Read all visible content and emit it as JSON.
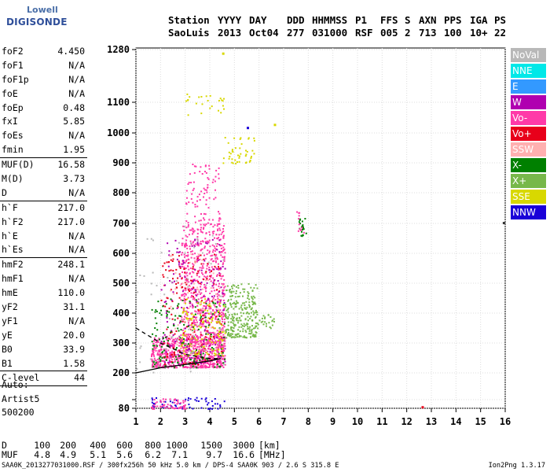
{
  "logo": {
    "line1": "Lowell",
    "line2": "DIGISONDE"
  },
  "header": {
    "labels": [
      "Station",
      "YYYY",
      "DAY",
      "DDD",
      "HHMMSS",
      "P1",
      "FFS",
      "S",
      "AXN",
      "PPS",
      "IGA",
      "PS"
    ],
    "values": [
      "SaoLuis",
      "2013",
      "Oct04",
      "277",
      "031000",
      "RSF",
      "005",
      "2",
      "713",
      "100",
      "10+",
      "22"
    ]
  },
  "params": [
    {
      "name": "foF2",
      "value": "4.450"
    },
    {
      "name": "foF1",
      "value": "N/A"
    },
    {
      "name": "foF1p",
      "value": "N/A"
    },
    {
      "name": "foE",
      "value": "N/A"
    },
    {
      "name": "foEp",
      "value": "0.48"
    },
    {
      "name": "fxI",
      "value": "5.85"
    },
    {
      "name": "foEs",
      "value": "N/A"
    },
    {
      "name": "fmin",
      "value": "1.95"
    },
    {
      "sep": true
    },
    {
      "name": "MUF(D)",
      "value": "16.58"
    },
    {
      "name": "M(D)",
      "value": "3.73"
    },
    {
      "name": "D",
      "value": "N/A"
    },
    {
      "sep": true
    },
    {
      "name": "h`F",
      "value": "217.0"
    },
    {
      "name": "h`F2",
      "value": "217.0"
    },
    {
      "name": "h`E",
      "value": "N/A"
    },
    {
      "name": "h`Es",
      "value": "N/A"
    },
    {
      "sep": true
    },
    {
      "name": "hmF2",
      "value": "248.1"
    },
    {
      "name": "hmF1",
      "value": "N/A"
    },
    {
      "name": "hmE",
      "value": "110.0"
    },
    {
      "name": "yF2",
      "value": "31.1"
    },
    {
      "name": "yF1",
      "value": "N/A"
    },
    {
      "name": "yE",
      "value": "20.0"
    },
    {
      "name": "B0",
      "value": "33.9"
    },
    {
      "name": "B1",
      "value": "1.58"
    },
    {
      "sep": true
    },
    {
      "name": "C-level",
      "value": "44"
    },
    {
      "sep": true
    }
  ],
  "auto": {
    "line1": "Auto:",
    "line2": "Artist5",
    "line3": "500200"
  },
  "legend": [
    {
      "label": "NoVal",
      "color": "#b8b8b8"
    },
    {
      "label": "NNE",
      "color": "#00e8e8"
    },
    {
      "label": "E",
      "color": "#3399ff"
    },
    {
      "label": "W",
      "color": "#b000b0"
    },
    {
      "label": "Vo-",
      "color": "#ff3aa8"
    },
    {
      "label": "Vo+",
      "color": "#e8001a"
    },
    {
      "label": "SSW",
      "color": "#ffb0b0"
    },
    {
      "label": "X-",
      "color": "#008000"
    },
    {
      "label": "X+",
      "color": "#77b84a"
    },
    {
      "label": "SSE",
      "color": "#d8d800"
    },
    {
      "label": "NNW",
      "color": "#1a00d8"
    }
  ],
  "bottom": {
    "d_label": "D",
    "d_values": [
      "100",
      "200",
      "400",
      "600",
      "800",
      "1000",
      "1500",
      "3000"
    ],
    "d_unit": "[km]",
    "muf_label": "MUF",
    "muf_values": [
      "4.8",
      "4.9",
      "5.1",
      "5.6",
      "6.2",
      "7.1",
      "9.7",
      "16.6"
    ],
    "muf_unit": "[MHz]"
  },
  "footer": {
    "left": "SAA0K_2013277031000.RSF / 300fx256h 50 kHz 5.0 km / DPS-4 SAA0K 903 / 2.6 S 315.8 E",
    "right": "Ion2Png 1.3.17"
  },
  "chart_data": {
    "type": "scatter",
    "x_ticks": [
      1,
      2,
      3,
      4,
      5,
      6,
      7,
      8,
      9,
      10,
      11,
      12,
      13,
      14,
      15,
      16
    ],
    "y_ticks": [
      80,
      100,
      200,
      300,
      400,
      500,
      600,
      700,
      800,
      900,
      1000,
      1100,
      1280
    ],
    "y_tick_labels": [
      "80",
      "",
      "200",
      "300",
      "400",
      "500",
      "600",
      "700",
      "800",
      "900",
      "1000",
      "1100",
      "1280"
    ],
    "xlim": [
      1,
      16
    ],
    "ylim": [
      80,
      1280
    ],
    "grid": true,
    "legend_position": "right",
    "clusters": [
      {
        "name": "Vo-",
        "color": "#ff3aa8",
        "x": [
          1.6,
          4.6
        ],
        "y": [
          220,
          320
        ],
        "n": 700
      },
      {
        "name": "Vo-",
        "color": "#ff3aa8",
        "x": [
          2.8,
          4.6
        ],
        "y": [
          300,
          700
        ],
        "n": 650
      },
      {
        "name": "Vo-",
        "color": "#ff3aa8",
        "x": [
          3.0,
          4.4
        ],
        "y": [
          700,
          900
        ],
        "n": 90
      },
      {
        "name": "Vo+",
        "color": "#e8001a",
        "x": [
          2.0,
          4.5
        ],
        "y": [
          230,
          600
        ],
        "n": 200
      },
      {
        "name": "W",
        "color": "#b000b0",
        "x": [
          2.0,
          4.6
        ],
        "y": [
          230,
          650
        ],
        "n": 180
      },
      {
        "name": "X-",
        "color": "#008000",
        "x": [
          1.6,
          4.6
        ],
        "y": [
          220,
          450
        ],
        "n": 160
      },
      {
        "name": "X+",
        "color": "#77b84a",
        "x": [
          4.6,
          5.9
        ],
        "y": [
          320,
          500
        ],
        "n": 260
      },
      {
        "name": "X+",
        "color": "#77b84a",
        "x": [
          5.9,
          6.6
        ],
        "y": [
          350,
          400
        ],
        "n": 25
      },
      {
        "name": "SSE",
        "color": "#d8d800",
        "x": [
          2.8,
          4.6
        ],
        "y": [
          260,
          450
        ],
        "n": 120
      },
      {
        "name": "SSE",
        "color": "#d8d800",
        "x": [
          4.5,
          5.8
        ],
        "y": [
          900,
          990
        ],
        "n": 45
      },
      {
        "name": "SSE",
        "color": "#d8d800",
        "x": [
          3.0,
          4.6
        ],
        "y": [
          1060,
          1130
        ],
        "n": 25
      },
      {
        "name": "SSW",
        "color": "#ffb0b0",
        "x": [
          2.3,
          4.6
        ],
        "y": [
          280,
          600
        ],
        "n": 80
      },
      {
        "name": "NNW",
        "color": "#1a00d8",
        "x": [
          1.6,
          4.6
        ],
        "y": [
          80,
          110
        ],
        "n": 60
      },
      {
        "name": "NoVal",
        "color": "#b8b8b8",
        "x": [
          1.0,
          4.6
        ],
        "y": [
          200,
          700
        ],
        "n": 70
      },
      {
        "name": "Vo-",
        "color": "#ff3aa8",
        "x": [
          1.6,
          3.0
        ],
        "y": [
          80,
          105
        ],
        "n": 60
      },
      {
        "name": "X-",
        "color": "#008000",
        "x": [
          7.6,
          7.9
        ],
        "y": [
          660,
          720
        ],
        "n": 20
      },
      {
        "name": "Vo-",
        "color": "#ff3aa8",
        "x": [
          7.5,
          7.8
        ],
        "y": [
          670,
          740
        ],
        "n": 12
      }
    ],
    "profile_solid": [
      [
        1.0,
        200
      ],
      [
        2.0,
        217
      ],
      [
        3.0,
        228
      ],
      [
        4.0,
        240
      ],
      [
        4.45,
        248
      ]
    ],
    "profile_dashed": [
      [
        1.0,
        350
      ],
      [
        2.0,
        300
      ],
      [
        3.0,
        262
      ],
      [
        4.0,
        248
      ],
      [
        4.45,
        248
      ]
    ],
    "single_points": [
      [
        12.6,
        85,
        "#e8001a"
      ],
      [
        15.9,
        705,
        "#333333"
      ],
      [
        5.5,
        1020,
        "#1a00d8"
      ],
      [
        6.6,
        1030,
        "#d8d800"
      ],
      [
        4.5,
        1270,
        "#d8d800"
      ]
    ]
  }
}
